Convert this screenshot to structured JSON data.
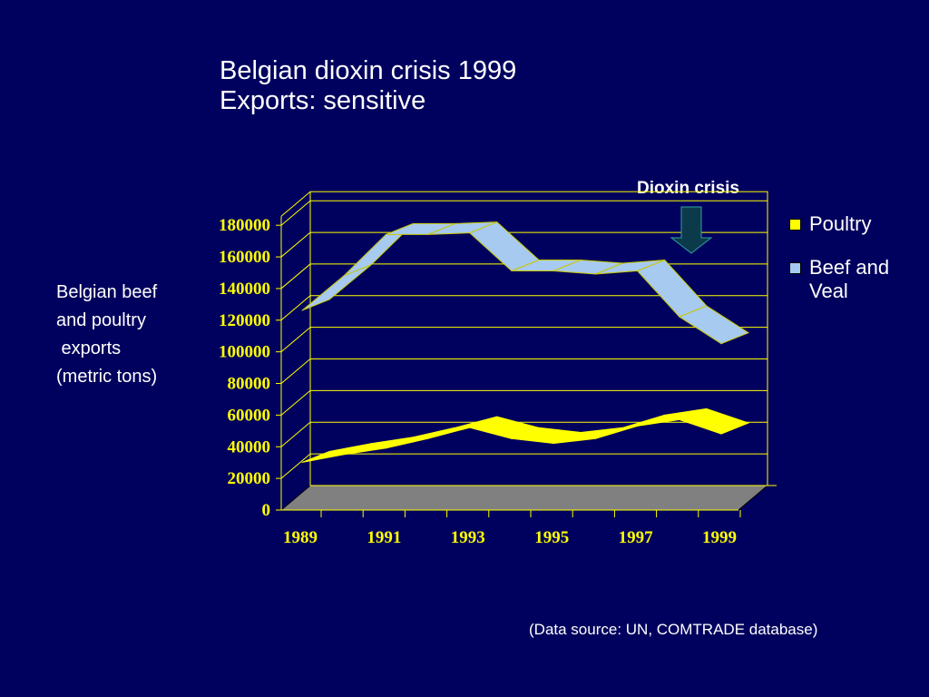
{
  "title_line1": "Belgian dioxin crisis 1999",
  "title_line2": "Exports: sensitive",
  "source": "(Data source: UN, COMTRADE database)",
  "annotation": "Dioxin crisis",
  "colors": {
    "background": "#00005e",
    "poultry": "#ffff00",
    "beef": "#a6caf0",
    "grid": "#ffff00",
    "floor": "#808080",
    "arrow": "#0b3a4a"
  },
  "chart_data": {
    "type": "area",
    "title": "Belgian dioxin crisis 1999",
    "subtitle": "Exports: sensitive",
    "ylabel": "Belgian beef\nand poultry\n exports\n(metric tons)",
    "xlabel": "",
    "ylim": [
      0,
      180000
    ],
    "yticks": [
      0,
      20000,
      40000,
      60000,
      80000,
      100000,
      120000,
      140000,
      160000,
      180000
    ],
    "x": [
      1989,
      1990,
      1991,
      1992,
      1993,
      1994,
      1995,
      1996,
      1997,
      1998,
      1999
    ],
    "xtick_labels": [
      "1989",
      "1991",
      "1993",
      "1995",
      "1997",
      "1999"
    ],
    "grid": true,
    "legend_position": "right",
    "three_d": true,
    "annotations": [
      {
        "text": "Dioxin crisis",
        "x": 1999,
        "marker": "down-arrow"
      }
    ],
    "series": [
      {
        "name": "Poultry",
        "values": [
          29000,
          34000,
          38000,
          44000,
          51000,
          44000,
          41000,
          44000,
          52000,
          56000,
          47000
        ]
      },
      {
        "name": "Beef and Veal",
        "values": [
          125000,
          147000,
          173000,
          173000,
          174000,
          150000,
          150000,
          148000,
          150000,
          121000,
          104000
        ]
      }
    ]
  }
}
